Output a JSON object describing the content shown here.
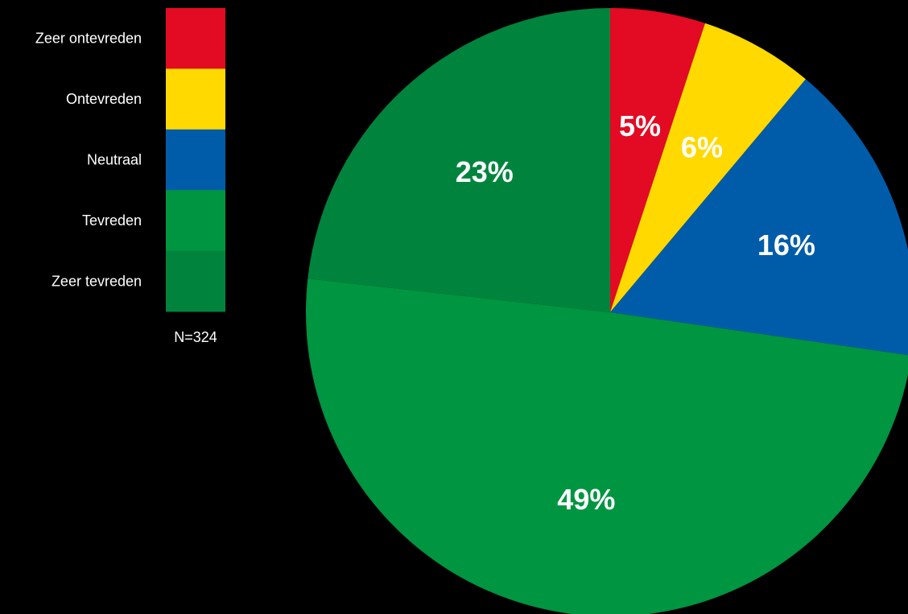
{
  "chart_data": {
    "type": "pie",
    "categories": [
      "Zeer ontevreden",
      "Ontevreden",
      "Neutraal",
      "Tevreden",
      "Zeer tevreden"
    ],
    "values": [
      5,
      6,
      16,
      49,
      23
    ],
    "value_labels": [
      "5%",
      "6%",
      "16%",
      "49%",
      "23%"
    ],
    "colors": [
      "#e30a23",
      "#ffd900",
      "#005ca9",
      "#009540",
      "#00843d"
    ],
    "unit": "%",
    "legend_position": "left",
    "start_angle": "top",
    "direction": "clockwise",
    "note": "N=324"
  }
}
